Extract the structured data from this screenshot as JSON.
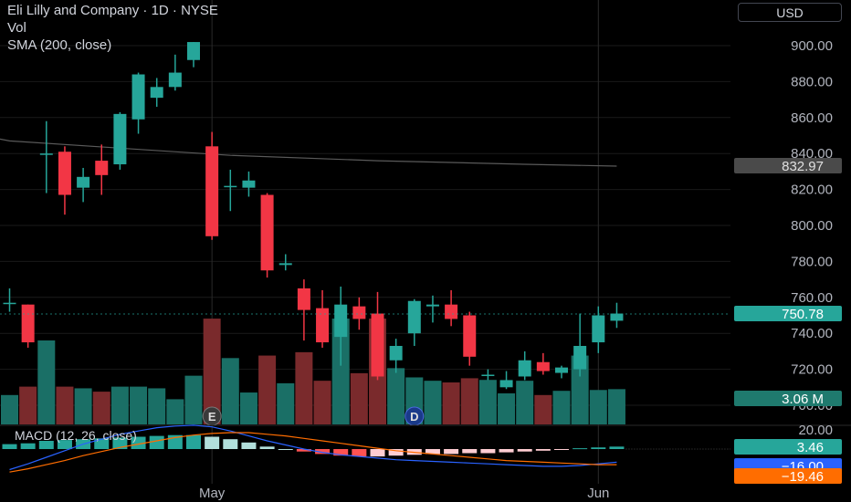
{
  "legend": {
    "title": "Eli Lilly and Company · 1D · NYSE",
    "vol": "Vol",
    "sma": "SMA (200, close)"
  },
  "currency": "USD",
  "macd_label": "MACD (12, 26, close)",
  "colors": {
    "bg": "#000000",
    "up": "#26a69a",
    "down": "#f23645",
    "up_vol": "#1a6f66",
    "down_vol": "#7a2a2c",
    "sma": "#5a5a5a",
    "macd": "#2962ff",
    "signal": "#ff6d00",
    "axis_text": "#b2b5be",
    "grid": "#1a1a1a"
  },
  "badges": {
    "sma_value": "832.97",
    "last_price": "750.78",
    "volume": "3.06 M",
    "histogram": "3.46",
    "macd_value": "−16.00",
    "signal_value": "−19.46"
  },
  "chart_data": {
    "type": "candlestick",
    "price_ticks": [
      "900.00",
      "880.00",
      "860.00",
      "840.00",
      "820.00",
      "800.00",
      "780.00",
      "760.00",
      "740.00",
      "720.00",
      "700.00"
    ],
    "price_range": [
      695,
      910
    ],
    "macd_ticks": [
      "20.00",
      "0.00"
    ],
    "x_labels": [
      {
        "label": "May",
        "index": 11
      },
      {
        "label": "Jun",
        "index": 32
      }
    ],
    "candles": [
      {
        "o": 757,
        "h": 765,
        "l": 752,
        "c": 757
      },
      {
        "o": 756,
        "h": 756,
        "l": 732,
        "c": 735
      },
      {
        "o": 840,
        "h": 858,
        "l": 818,
        "c": 840
      },
      {
        "o": 841,
        "h": 844,
        "l": 806,
        "c": 817
      },
      {
        "o": 821,
        "h": 832,
        "l": 813,
        "c": 827
      },
      {
        "o": 836,
        "h": 845,
        "l": 817,
        "c": 828
      },
      {
        "o": 834,
        "h": 863,
        "l": 831,
        "c": 862
      },
      {
        "o": 859,
        "h": 885,
        "l": 851,
        "c": 884
      },
      {
        "o": 871,
        "h": 882,
        "l": 866,
        "c": 877
      },
      {
        "o": 877,
        "h": 895,
        "l": 875,
        "c": 885
      },
      {
        "o": 892,
        "h": 902,
        "l": 888,
        "c": 902
      },
      {
        "o": 844,
        "h": 852,
        "l": 792,
        "c": 794
      },
      {
        "o": 822,
        "h": 831,
        "l": 808,
        "c": 822
      },
      {
        "o": 821,
        "h": 830,
        "l": 816,
        "c": 825
      },
      {
        "o": 817,
        "h": 818,
        "l": 771,
        "c": 775
      },
      {
        "o": 778,
        "h": 784,
        "l": 775,
        "c": 779
      },
      {
        "o": 765,
        "h": 770,
        "l": 736,
        "c": 753
      },
      {
        "o": 754,
        "h": 764,
        "l": 732,
        "c": 735
      },
      {
        "o": 738,
        "h": 766,
        "l": 722,
        "c": 756
      },
      {
        "o": 755,
        "h": 760,
        "l": 742,
        "c": 748
      },
      {
        "o": 751,
        "h": 763,
        "l": 714,
        "c": 716
      },
      {
        "o": 725,
        "h": 737,
        "l": 718,
        "c": 733
      },
      {
        "o": 740,
        "h": 759,
        "l": 733,
        "c": 758
      },
      {
        "o": 755,
        "h": 761,
        "l": 746,
        "c": 756
      },
      {
        "o": 756,
        "h": 764,
        "l": 744,
        "c": 748
      },
      {
        "o": 750,
        "h": 752,
        "l": 722,
        "c": 727
      },
      {
        "o": 717,
        "h": 720,
        "l": 714,
        "c": 717
      },
      {
        "o": 710,
        "h": 719,
        "l": 709,
        "c": 714
      },
      {
        "o": 716,
        "h": 730,
        "l": 714,
        "c": 725
      },
      {
        "o": 724,
        "h": 729,
        "l": 717,
        "c": 719
      },
      {
        "o": 718,
        "h": 722,
        "l": 715,
        "c": 721
      },
      {
        "o": 720,
        "h": 751,
        "l": 716,
        "c": 733
      },
      {
        "o": 735,
        "h": 755,
        "l": 729,
        "c": 750
      },
      {
        "o": 747,
        "h": 757,
        "l": 743,
        "c": 751
      }
    ],
    "volume_ratio": [
      0.35,
      0.45,
      1.0,
      0.45,
      0.43,
      0.39,
      0.45,
      0.45,
      0.43,
      0.3,
      0.58,
      1.26,
      0.79,
      0.38,
      0.82,
      0.49,
      0.86,
      0.52,
      1.26,
      0.61,
      1.26,
      0.67,
      0.56,
      0.52,
      0.5,
      0.55,
      0.53,
      0.37,
      0.52,
      0.35,
      0.4,
      0.82,
      0.41,
      0.42
    ],
    "sma": [
      [
        0,
        847
      ],
      [
        6,
        843
      ],
      [
        12,
        839
      ],
      [
        20,
        836
      ],
      [
        28,
        834
      ],
      [
        33,
        833
      ]
    ],
    "macd_hist": [
      6,
      7,
      10,
      11,
      12,
      13,
      14,
      15,
      16,
      17,
      17,
      15,
      12,
      8,
      3,
      0,
      -3,
      -6,
      -8,
      -9,
      -9,
      -8,
      -7,
      -6,
      -6,
      -5,
      -5,
      -4,
      -3,
      -2,
      -1,
      1,
      2,
      3
    ],
    "macd_line": [
      -25,
      -18,
      -10,
      -2,
      6,
      12,
      18,
      22,
      26,
      28,
      29,
      27,
      22,
      16,
      10,
      5,
      0,
      -4,
      -7,
      -9,
      -11,
      -13,
      -14,
      -15,
      -16,
      -17,
      -18,
      -19,
      -20,
      -21,
      -21,
      -20,
      -18,
      -16
    ],
    "signal_line": [
      -28,
      -24,
      -19,
      -14,
      -8,
      -3,
      2,
      6,
      10,
      14,
      17,
      19,
      20,
      20,
      18,
      16,
      13,
      10,
      7,
      4,
      1,
      -2,
      -4,
      -6,
      -8,
      -10,
      -12,
      -14,
      -15,
      -16,
      -17,
      -18,
      -19,
      -19
    ]
  }
}
